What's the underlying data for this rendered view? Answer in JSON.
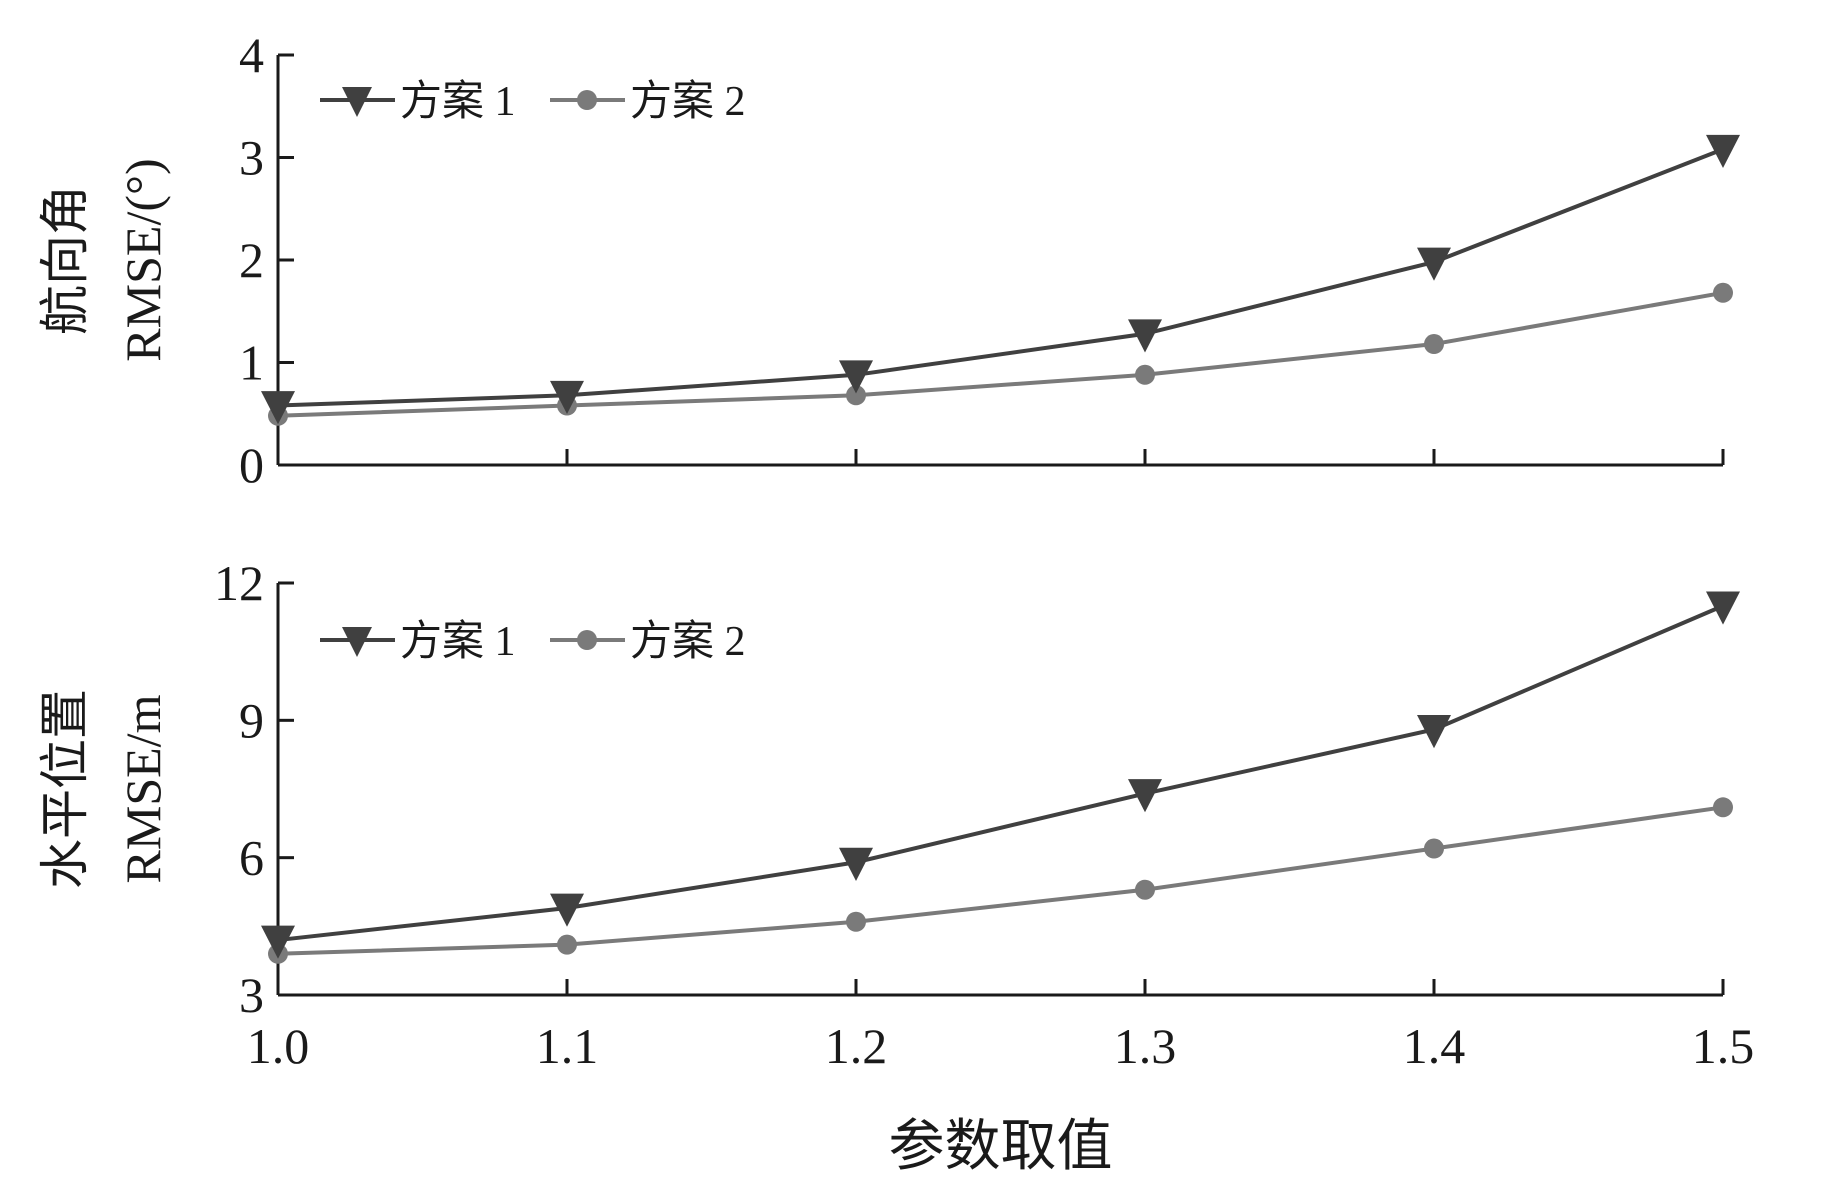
{
  "chart_data": [
    {
      "type": "line",
      "title": "",
      "ylabel_lines": [
        "航向角",
        "RMSE/(°)"
      ],
      "xlim": [
        1.0,
        1.5
      ],
      "ylim": [
        0,
        4
      ],
      "yticks": [
        0,
        1,
        2,
        3,
        4
      ],
      "grid": false,
      "legend_position": "top-left",
      "x": [
        1.0,
        1.1,
        1.2,
        1.3,
        1.4,
        1.5
      ],
      "series": [
        {
          "name": "方案 1",
          "marker": "triangle-down",
          "color": "#404040",
          "values": [
            0.58,
            0.68,
            0.88,
            1.28,
            1.98,
            3.08
          ]
        },
        {
          "name": "方案 2",
          "marker": "circle",
          "color": "#7a7a7a",
          "values": [
            0.48,
            0.58,
            0.68,
            0.88,
            1.18,
            1.68
          ]
        }
      ]
    },
    {
      "type": "line",
      "title": "",
      "ylabel_lines": [
        "水平位置",
        "RMSE/m"
      ],
      "xlabel": "参数取值",
      "xlim": [
        1.0,
        1.5
      ],
      "ylim": [
        3,
        12
      ],
      "yticks": [
        3,
        6,
        9,
        12
      ],
      "grid": false,
      "legend_position": "top-left",
      "x": [
        1.0,
        1.1,
        1.2,
        1.3,
        1.4,
        1.5
      ],
      "xtick_labels": [
        "1.0",
        "1.1",
        "1.2",
        "1.3",
        "1.4",
        "1.5"
      ],
      "series": [
        {
          "name": "方案 1",
          "marker": "triangle-down",
          "color": "#404040",
          "values": [
            4.2,
            4.9,
            5.9,
            7.4,
            8.8,
            11.5
          ]
        },
        {
          "name": "方案 2",
          "marker": "circle",
          "color": "#7a7a7a",
          "values": [
            3.9,
            4.1,
            4.6,
            5.3,
            6.2,
            7.1
          ]
        }
      ]
    }
  ]
}
